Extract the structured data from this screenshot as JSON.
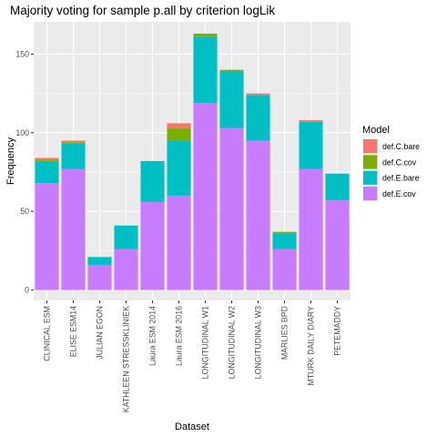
{
  "chart_data": {
    "type": "bar",
    "stacked": true,
    "title": "Majority voting for sample p.all by criterion logLik",
    "xlabel": "Dataset",
    "ylabel": "Frequency",
    "ylim": [
      0,
      170
    ],
    "yticks": [
      0,
      50,
      100,
      150
    ],
    "grid": true,
    "legend": {
      "title": "Model",
      "placement": "right"
    },
    "categories": [
      "CLINICAL ESM",
      "ELISE ESM14",
      "JULIAN EGON",
      "KATHLEEN STRESSKLINIEK",
      "Laura ESM 2014",
      "Laura ESM 2016",
      "LONGITUDINAL W1",
      "LONGITUDINAL W2",
      "LONGITUDINAL W3",
      "MARLIES BPD",
      "MTURK DAILY DIARY",
      "PETEMADDY"
    ],
    "series": [
      {
        "name": "def.C.bare",
        "color": "#F8766D",
        "values": [
          1,
          1,
          0,
          0,
          0,
          3,
          0,
          0,
          1,
          0,
          1,
          0
        ]
      },
      {
        "name": "def.C.cov",
        "color": "#7CAE00",
        "values": [
          1,
          1,
          0,
          0,
          0,
          8,
          2,
          1,
          0,
          1,
          0,
          0
        ]
      },
      {
        "name": "def.E.bare",
        "color": "#00BFC4",
        "values": [
          14,
          16,
          5,
          15,
          26,
          35,
          42,
          36,
          29,
          10,
          30,
          17
        ]
      },
      {
        "name": "def.E.cov",
        "color": "#C77CFF",
        "values": [
          68,
          77,
          16,
          26,
          56,
          60,
          119,
          103,
          95,
          26,
          77,
          57
        ]
      }
    ]
  }
}
